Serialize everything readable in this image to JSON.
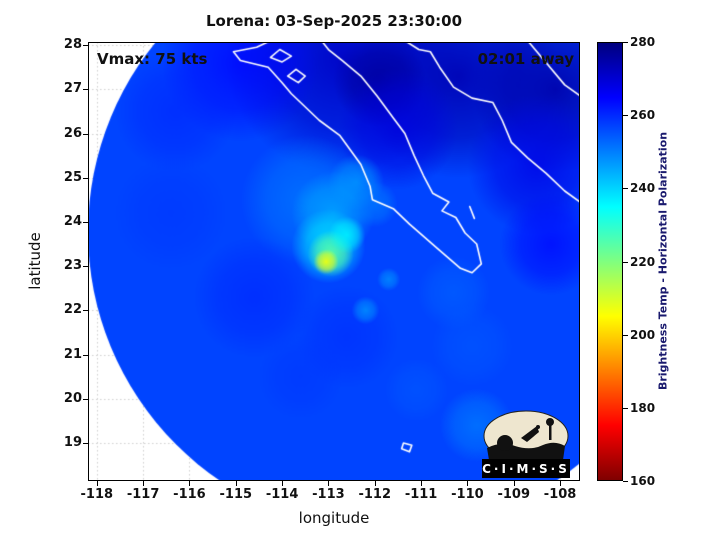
{
  "title": "Lorena: 03-Sep-2025 23:30:00",
  "annotations": {
    "vmax": "Vmax: 75 kts",
    "eta": "02:01 away"
  },
  "axes": {
    "xlabel": "longitude",
    "ylabel": "latitude",
    "x_ticks": [
      -118,
      -117,
      -116,
      -115,
      -114,
      -113,
      -112,
      -111,
      -110,
      -109,
      -108
    ],
    "y_ticks": [
      28,
      27,
      26,
      25,
      24,
      23,
      22,
      21,
      20,
      19
    ],
    "x_range": [
      -118.19,
      -107.57
    ],
    "y_range": [
      18.14,
      28.07
    ]
  },
  "colorbar": {
    "label": "Brightness Temp - Horizontal Polarization",
    "ticks": [
      280,
      260,
      240,
      220,
      200,
      180,
      160
    ],
    "range": [
      160,
      280
    ],
    "stops": [
      {
        "t": 280,
        "color": "#00007f"
      },
      {
        "t": 265,
        "color": "#0000ff"
      },
      {
        "t": 235,
        "color": "#00ffff"
      },
      {
        "t": 205,
        "color": "#ffff00"
      },
      {
        "t": 175,
        "color": "#ff0000"
      },
      {
        "t": 160,
        "color": "#7f0000"
      }
    ]
  },
  "logo": {
    "text": "C·I·M·S·S"
  },
  "chart_data": {
    "type": "heatmap",
    "title": "Lorena: 03-Sep-2025 23:30:00",
    "storm": {
      "name": "Lorena",
      "vmax_label": "Vmax: 75 kts",
      "time_label": "03-Sep-2025 23:30:00",
      "eta_label": "02:01 away",
      "center_estimate_lonlat": [
        -113.0,
        23.2
      ]
    },
    "xlabel": "longitude",
    "ylabel": "latitude",
    "xlim": [
      -118.19,
      -107.57
    ],
    "ylim": [
      18.14,
      28.07
    ],
    "colorbar_label": "Brightness Temp - Horizontal Polarization",
    "colorbar_range_K": [
      160,
      280
    ],
    "grid": true,
    "swath": {
      "center_lon": -111.71,
      "center_lat": 23.77,
      "rx_deg": 6.48,
      "ry_deg": 6.79,
      "base_temp": 257
    },
    "features_note": "approximate brightness-temperature blobs: [lon, lat, radius_deg, temp_K, opacity]",
    "features": [
      [
        -112.7,
        27.7,
        2.5,
        272,
        0.9
      ],
      [
        -110.2,
        27.3,
        2.2,
        274,
        0.9
      ],
      [
        -108.1,
        27.0,
        1.8,
        275,
        0.9
      ],
      [
        -111.9,
        27.2,
        1.0,
        276,
        0.9
      ],
      [
        -108.5,
        25.3,
        1.5,
        268,
        0.8
      ],
      [
        -114.9,
        27.6,
        1.7,
        265,
        0.75
      ],
      [
        -111.5,
        26.1,
        1.3,
        269,
        0.8
      ],
      [
        -116.3,
        26.5,
        1.3,
        261,
        0.6
      ],
      [
        -108.2,
        23.5,
        1.1,
        265,
        0.7
      ],
      [
        -113.5,
        24.5,
        1.4,
        250,
        0.7
      ],
      [
        -112.9,
        24.2,
        0.9,
        245,
        0.8
      ],
      [
        -112.4,
        24.9,
        0.6,
        247,
        0.8
      ],
      [
        -112.0,
        24.4,
        0.5,
        250,
        0.7
      ],
      [
        -113.0,
        23.45,
        0.8,
        238,
        0.85
      ],
      [
        -112.95,
        23.28,
        0.5,
        224,
        0.9
      ],
      [
        -113.05,
        23.1,
        0.27,
        207,
        0.95
      ],
      [
        -112.6,
        23.7,
        0.4,
        235,
        0.7
      ],
      [
        -114.6,
        22.3,
        1.3,
        261,
        0.6
      ],
      [
        -112.6,
        21.4,
        1.1,
        260,
        0.6
      ],
      [
        -116.4,
        24.2,
        1.2,
        259,
        0.5
      ],
      [
        -113.6,
        20.5,
        0.9,
        259,
        0.5
      ],
      [
        -110.3,
        22.4,
        0.8,
        253,
        0.6
      ],
      [
        -109.9,
        21.2,
        0.9,
        254,
        0.5
      ],
      [
        -111.1,
        20.2,
        0.7,
        254,
        0.5
      ],
      [
        -109.8,
        19.4,
        0.8,
        250,
        0.7
      ],
      [
        -112.2,
        22.0,
        0.3,
        246,
        0.7
      ],
      [
        -111.7,
        22.7,
        0.25,
        247,
        0.7
      ]
    ],
    "coastlines": [
      [
        [
          -114.25,
          28.1
        ],
        [
          -114.55,
          27.95
        ],
        [
          -115.05,
          27.85
        ],
        [
          -114.9,
          27.65
        ],
        [
          -114.3,
          27.5
        ],
        [
          -114.0,
          27.15
        ],
        [
          -113.8,
          26.9
        ],
        [
          -113.55,
          26.65
        ],
        [
          -113.2,
          26.3
        ],
        [
          -112.75,
          25.95
        ],
        [
          -112.3,
          25.3
        ],
        [
          -112.1,
          24.8
        ],
        [
          -112.05,
          24.5
        ],
        [
          -111.6,
          24.3
        ],
        [
          -111.25,
          23.95
        ],
        [
          -110.65,
          23.4
        ],
        [
          -110.15,
          22.95
        ],
        [
          -109.9,
          22.85
        ],
        [
          -109.7,
          23.05
        ],
        [
          -109.8,
          23.5
        ],
        [
          -110.05,
          23.75
        ],
        [
          -110.25,
          24.1
        ],
        [
          -110.55,
          24.25
        ],
        [
          -110.4,
          24.45
        ],
        [
          -110.75,
          24.65
        ],
        [
          -110.95,
          25.05
        ],
        [
          -111.15,
          25.5
        ],
        [
          -111.35,
          26.0
        ],
        [
          -111.6,
          26.35
        ],
        [
          -111.95,
          26.85
        ],
        [
          -112.3,
          27.3
        ],
        [
          -112.7,
          27.65
        ],
        [
          -113.0,
          27.9
        ],
        [
          -113.15,
          28.1
        ]
      ],
      [
        [
          -114.05,
          27.9
        ],
        [
          -113.8,
          27.75
        ],
        [
          -114.0,
          27.62
        ],
        [
          -114.25,
          27.72
        ],
        [
          -114.05,
          27.9
        ]
      ],
      [
        [
          -113.7,
          27.45
        ],
        [
          -113.5,
          27.3
        ],
        [
          -113.65,
          27.15
        ],
        [
          -113.88,
          27.3
        ],
        [
          -113.7,
          27.45
        ]
      ],
      [
        [
          -111.35,
          28.1
        ],
        [
          -111.05,
          27.9
        ],
        [
          -110.8,
          27.85
        ],
        [
          -110.6,
          27.5
        ],
        [
          -110.3,
          27.05
        ],
        [
          -109.9,
          26.8
        ],
        [
          -109.45,
          26.7
        ],
        [
          -109.25,
          26.3
        ],
        [
          -109.05,
          25.8
        ],
        [
          -108.7,
          25.45
        ],
        [
          -108.3,
          25.1
        ],
        [
          -107.9,
          24.7
        ],
        [
          -107.5,
          24.4
        ]
      ],
      [
        [
          -108.7,
          28.1
        ],
        [
          -108.3,
          27.6
        ],
        [
          -107.9,
          27.1
        ],
        [
          -107.5,
          26.8
        ]
      ],
      [
        [
          -109.95,
          24.35
        ],
        [
          -109.85,
          24.08
        ]
      ],
      [
        [
          -111.38,
          19.0
        ],
        [
          -111.2,
          18.95
        ],
        [
          -111.25,
          18.8
        ],
        [
          -111.42,
          18.87
        ],
        [
          -111.38,
          19.0
        ]
      ]
    ]
  }
}
